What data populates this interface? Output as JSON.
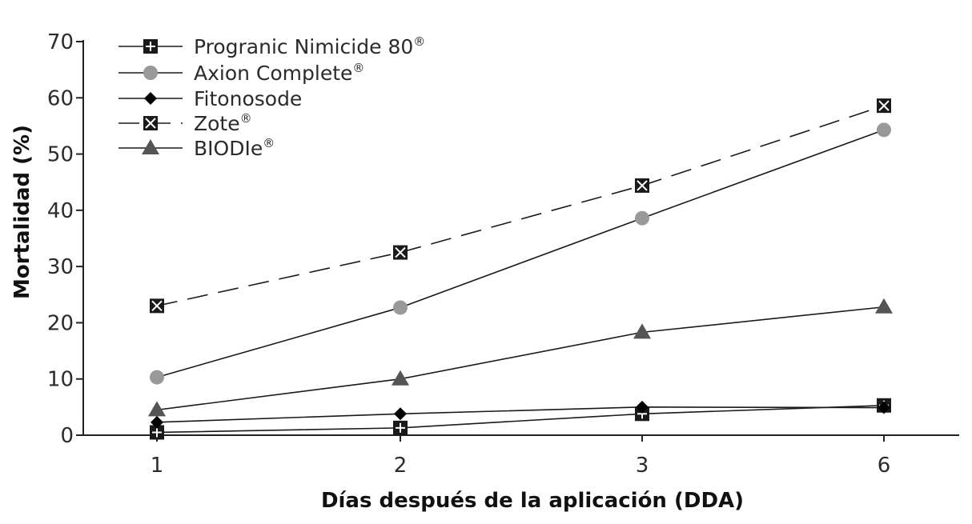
{
  "chart_data": {
    "type": "line",
    "x": [
      "1",
      "2",
      "3",
      "6"
    ],
    "xlabel": "Días después de la aplicación (DDA)",
    "ylabel": "Mortalidad (%)",
    "ylim": [
      0,
      70
    ],
    "yticks": [
      "0",
      "10",
      "20",
      "30",
      "40",
      "50",
      "60",
      "70"
    ],
    "grid": false,
    "legend_position": "top-left",
    "series": [
      {
        "name": "Progranic Nimicide 80",
        "mark": "®",
        "marker": "plus-square",
        "line": "solid",
        "color": "#1a1a1a",
        "values": [
          0.5,
          1.3,
          3.8,
          5.3
        ]
      },
      {
        "name": "Axion Complete",
        "mark": "®",
        "marker": "circle",
        "line": "solid",
        "color": "#999999",
        "values": [
          10.3,
          22.7,
          38.6,
          54.3
        ]
      },
      {
        "name": "Fitonosode",
        "mark": "",
        "marker": "diamond",
        "line": "solid",
        "color": "#000000",
        "values": [
          2.3,
          3.8,
          5.0,
          4.9
        ]
      },
      {
        "name": "Zote",
        "mark": "®",
        "marker": "x-square",
        "line": "dashed",
        "color": "#333333",
        "values": [
          23.0,
          32.5,
          44.4,
          58.6
        ]
      },
      {
        "name": "BIODIe",
        "mark": "®",
        "marker": "triangle",
        "line": "solid",
        "color": "#555555",
        "values": [
          4.5,
          10.0,
          18.3,
          22.8
        ]
      }
    ]
  }
}
